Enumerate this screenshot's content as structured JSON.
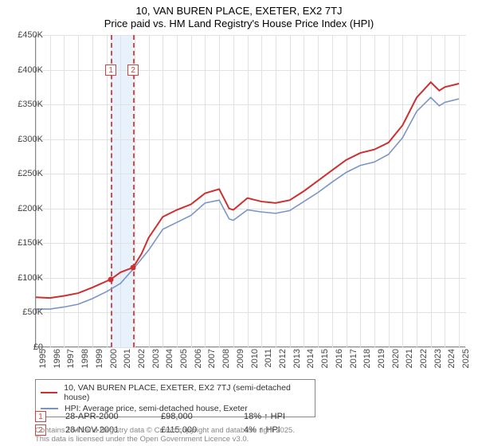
{
  "title": {
    "line1": "10, VAN BUREN PLACE, EXETER, EX2 7TJ",
    "line2": "Price paid vs. HM Land Registry's House Price Index (HPI)"
  },
  "chart": {
    "type": "line",
    "background_color": "#ffffff",
    "grid_color": "#e2e2e2",
    "axis_color": "#888888",
    "x": {
      "years": [
        1995,
        1996,
        1997,
        1998,
        1999,
        2000,
        2001,
        2002,
        2003,
        2004,
        2005,
        2006,
        2007,
        2008,
        2009,
        2010,
        2011,
        2012,
        2013,
        2014,
        2015,
        2016,
        2017,
        2018,
        2019,
        2020,
        2021,
        2022,
        2023,
        2024,
        2025
      ],
      "label_fontsize": 11
    },
    "y": {
      "min": 0,
      "max": 450000,
      "ticks": [
        0,
        50000,
        100000,
        150000,
        200000,
        250000,
        300000,
        350000,
        400000,
        450000
      ],
      "tick_labels": [
        "£0",
        "£50K",
        "£100K",
        "£150K",
        "£200K",
        "£250K",
        "£300K",
        "£350K",
        "£400K",
        "£450K"
      ],
      "label_fontsize": 11
    },
    "band": {
      "start_year": 2000.3,
      "end_year": 2001.9,
      "fill": "#e8f2fc"
    },
    "vlines": [
      {
        "year": 2000.32,
        "color": "#d05050"
      },
      {
        "year": 2001.9,
        "color": "#d05050"
      }
    ],
    "markers": [
      {
        "label": "1",
        "year": 2000.32,
        "y": 400000,
        "border": "#cc4444"
      },
      {
        "label": "2",
        "year": 2001.9,
        "y": 400000,
        "border": "#cc4444"
      }
    ],
    "series": [
      {
        "name": "10, VAN BUREN PLACE, EXETER, EX2 7TJ (semi-detached house)",
        "color": "#cc3030",
        "width": 2,
        "points": [
          [
            1995,
            72000
          ],
          [
            1996,
            71000
          ],
          [
            1997,
            74000
          ],
          [
            1998,
            78000
          ],
          [
            1999,
            86000
          ],
          [
            2000.32,
            98000
          ],
          [
            2001,
            108000
          ],
          [
            2001.9,
            115000
          ],
          [
            2002.5,
            135000
          ],
          [
            2003,
            158000
          ],
          [
            2004,
            188000
          ],
          [
            2005,
            198000
          ],
          [
            2006,
            206000
          ],
          [
            2007,
            222000
          ],
          [
            2008,
            228000
          ],
          [
            2008.7,
            200000
          ],
          [
            2009,
            198000
          ],
          [
            2010,
            215000
          ],
          [
            2011,
            210000
          ],
          [
            2012,
            208000
          ],
          [
            2013,
            212000
          ],
          [
            2014,
            225000
          ],
          [
            2015,
            240000
          ],
          [
            2016,
            255000
          ],
          [
            2017,
            270000
          ],
          [
            2018,
            280000
          ],
          [
            2019,
            285000
          ],
          [
            2020,
            295000
          ],
          [
            2021,
            320000
          ],
          [
            2022,
            360000
          ],
          [
            2023,
            382000
          ],
          [
            2023.6,
            370000
          ],
          [
            2024,
            375000
          ],
          [
            2025,
            380000
          ]
        ]
      },
      {
        "name": "HPI: Average price, semi-detached house, Exeter",
        "color": "#7a94c9",
        "width": 1.6,
        "points": [
          [
            1995,
            55000
          ],
          [
            1996,
            55000
          ],
          [
            1997,
            58000
          ],
          [
            1998,
            62000
          ],
          [
            1999,
            70000
          ],
          [
            2000,
            80000
          ],
          [
            2001,
            92000
          ],
          [
            2002,
            115000
          ],
          [
            2003,
            140000
          ],
          [
            2004,
            170000
          ],
          [
            2005,
            180000
          ],
          [
            2006,
            190000
          ],
          [
            2007,
            208000
          ],
          [
            2008,
            212000
          ],
          [
            2008.7,
            185000
          ],
          [
            2009,
            183000
          ],
          [
            2010,
            198000
          ],
          [
            2011,
            195000
          ],
          [
            2012,
            193000
          ],
          [
            2013,
            197000
          ],
          [
            2014,
            210000
          ],
          [
            2015,
            223000
          ],
          [
            2016,
            238000
          ],
          [
            2017,
            252000
          ],
          [
            2018,
            262000
          ],
          [
            2019,
            267000
          ],
          [
            2020,
            278000
          ],
          [
            2021,
            302000
          ],
          [
            2022,
            340000
          ],
          [
            2023,
            360000
          ],
          [
            2023.6,
            348000
          ],
          [
            2024,
            353000
          ],
          [
            2025,
            358000
          ]
        ]
      }
    ],
    "dots": [
      {
        "year": 2000.32,
        "value": 98000
      },
      {
        "year": 2001.9,
        "value": 115000
      }
    ]
  },
  "legend": {
    "items": [
      {
        "color": "#cc3030",
        "label": "10, VAN BUREN PLACE, EXETER, EX2 7TJ (semi-detached house)"
      },
      {
        "color": "#7a94c9",
        "label": "HPI: Average price, semi-detached house, Exeter"
      }
    ]
  },
  "data_points": [
    {
      "marker": "1",
      "date": "28-APR-2000",
      "price": "£98,000",
      "pct": "18% ↑ HPI"
    },
    {
      "marker": "2",
      "date": "28-NOV-2001",
      "price": "£115,000",
      "pct": "4% ↑ HPI"
    }
  ],
  "credit": {
    "line1": "Contains HM Land Registry data © Crown copyright and database right 2025.",
    "line2": "This data is licensed under the Open Government Licence v3.0."
  }
}
